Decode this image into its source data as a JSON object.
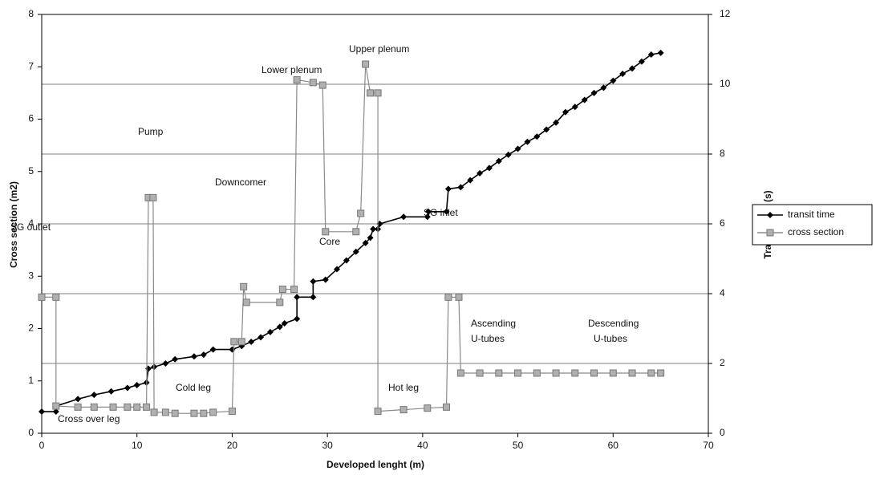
{
  "chart_data": {
    "type": "line",
    "x_label": "Developed lenght (m)",
    "y_label": "Cross section (m2)",
    "y2_label": "Transit time (s)",
    "xlim": [
      0,
      70
    ],
    "xticks": [
      0,
      10,
      20,
      30,
      40,
      50,
      60,
      70
    ],
    "ylim": [
      0,
      8
    ],
    "yticks": [
      0,
      1,
      2,
      3,
      4,
      5,
      6,
      7,
      8
    ],
    "y2lim": [
      0,
      12
    ],
    "y2ticks": [
      0,
      2,
      4,
      6,
      8,
      10,
      12
    ],
    "grid": true,
    "legend": "right",
    "annotations": [
      "SG outlet",
      "Pump",
      "Lower plenum",
      "Upper plenum",
      "Downcomer",
      "Core",
      "SG inlet",
      "Ascending",
      "U-tubes",
      "Descending",
      "U-tubes",
      "Cold leg",
      "Hot leg",
      "Cross over leg"
    ],
    "series": [
      {
        "name": "transit time",
        "color": "#000000",
        "axis": "y2",
        "x": [
          0,
          1.5,
          1.5,
          3.8,
          5.5,
          7.3,
          9,
          10,
          11,
          11.2,
          11.8,
          13,
          14,
          16,
          17,
          18,
          20,
          21,
          22,
          23,
          24,
          25,
          25.5,
          26.8,
          26.8,
          28.5,
          28.5,
          29.8,
          31,
          32,
          33,
          34,
          34.5,
          34.8,
          35.3,
          35.5,
          38,
          40.5,
          40.6,
          42.5,
          42.7,
          44,
          45,
          46,
          47,
          48,
          49,
          50,
          51,
          52,
          53,
          54,
          55,
          56,
          57,
          58,
          59,
          60,
          61,
          62,
          63,
          64,
          65
        ],
        "values": [
          0.62,
          0.62,
          0.78,
          0.98,
          1.1,
          1.2,
          1.3,
          1.38,
          1.45,
          1.85,
          1.9,
          2.0,
          2.12,
          2.2,
          2.25,
          2.4,
          2.4,
          2.5,
          2.62,
          2.75,
          2.9,
          3.05,
          3.15,
          3.28,
          3.9,
          3.9,
          4.35,
          4.4,
          4.7,
          4.95,
          5.2,
          5.45,
          5.6,
          5.85,
          5.85,
          6.0,
          6.2,
          6.2,
          6.35,
          6.35,
          7.0,
          7.05,
          7.25,
          7.45,
          7.6,
          7.8,
          7.98,
          8.15,
          8.35,
          8.5,
          8.7,
          8.9,
          9.2,
          9.35,
          9.55,
          9.75,
          9.9,
          10.1,
          10.3,
          10.45,
          10.65,
          10.85,
          10.9
        ]
      },
      {
        "name": "cross section",
        "color": "#8a8a8a",
        "axis": "y",
        "x": [
          0,
          1.5,
          1.5,
          3.8,
          5.5,
          7.5,
          9,
          10,
          11,
          11.2,
          11.7,
          11.8,
          13,
          14,
          16,
          17,
          18,
          20,
          20.2,
          21,
          21.2,
          21.5,
          25,
          25.3,
          26.5,
          26.8,
          28.5,
          29.5,
          29.8,
          33,
          33.5,
          34,
          34.5,
          35.3,
          35.3,
          38,
          40.5,
          42.5,
          42.7,
          43.8,
          44,
          46,
          48,
          50,
          52,
          54,
          56,
          58,
          60,
          62,
          64,
          65
        ],
        "values": [
          2.6,
          2.6,
          0.52,
          0.5,
          0.5,
          0.5,
          0.5,
          0.5,
          0.5,
          4.5,
          4.5,
          0.4,
          0.4,
          0.38,
          0.38,
          0.38,
          0.4,
          0.42,
          1.75,
          1.75,
          2.8,
          2.5,
          2.5,
          2.75,
          2.75,
          6.75,
          6.7,
          6.65,
          3.85,
          3.85,
          4.2,
          7.05,
          6.5,
          6.5,
          0.42,
          0.45,
          0.48,
          0.5,
          2.6,
          2.6,
          1.15,
          1.15,
          1.15,
          1.15,
          1.15,
          1.15,
          1.15,
          1.15,
          1.15,
          1.15,
          1.15,
          1.15
        ]
      }
    ]
  }
}
